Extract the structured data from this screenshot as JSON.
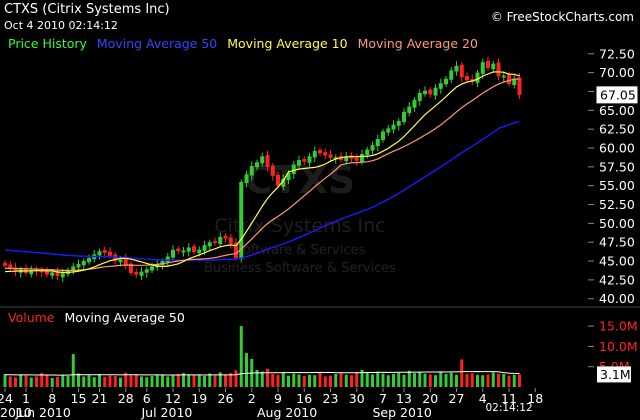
{
  "header": {
    "ticker_title": "CTXS (Citrix Systems Inc)",
    "datetime": "Oct 4 2010 02:14:12",
    "credit": "© FreeStockCharts.com"
  },
  "legend": {
    "price_history": "Price History",
    "ma50": "Moving Average 50",
    "ma10": "Moving Average 10",
    "ma20": "Moving Average 20",
    "volume": "Volume",
    "volume_ma50": "Moving Average 50"
  },
  "watermark": {
    "symbol": "CTXS",
    "company": "Citrix Systems Inc",
    "sector": "Software & Services",
    "industry": "Business Software & Services"
  },
  "colors": {
    "background": "#000000",
    "up": "#33cc33",
    "down": "#ff2222",
    "ma50": "#1a1aff",
    "ma10": "#ffff44",
    "ma20": "#ff9977",
    "volume_label": "#ff2222",
    "price_history_label": "#33ff33"
  },
  "chart_data": {
    "type": "candlestick",
    "price_axis": {
      "ticks": [
        "40.00",
        "42.50",
        "45.00",
        "47.50",
        "50.00",
        "52.50",
        "55.00",
        "57.50",
        "60.00",
        "62.50",
        "65.00",
        "67.50",
        "70.00",
        "72.50"
      ],
      "ylim": [
        39.3,
        73.8
      ]
    },
    "last_price": "67.05",
    "volume_axis": {
      "ticks": [
        "5.0M",
        "10.0M",
        "15.0M"
      ],
      "ylim": [
        0,
        16.5
      ],
      "unit": "M"
    },
    "last_volume": "3.1M",
    "x_ticks": [
      {
        "label": "24",
        "i": 0
      },
      {
        "label": "1",
        "i": 4
      },
      {
        "label": "8",
        "i": 9
      },
      {
        "label": "15",
        "i": 14
      },
      {
        "label": "21",
        "i": 18
      },
      {
        "label": "28",
        "i": 23
      },
      {
        "label": "6",
        "i": 27
      },
      {
        "label": "12",
        "i": 32
      },
      {
        "label": "19",
        "i": 37
      },
      {
        "label": "26",
        "i": 42
      },
      {
        "label": "2",
        "i": 47
      },
      {
        "label": "9",
        "i": 52
      },
      {
        "label": "16",
        "i": 57
      },
      {
        "label": "23",
        "i": 62
      },
      {
        "label": "30",
        "i": 67
      },
      {
        "label": "7",
        "i": 72
      },
      {
        "label": "13",
        "i": 76
      },
      {
        "label": "20",
        "i": 81
      },
      {
        "label": "27",
        "i": 86
      },
      {
        "label": "4",
        "i": 91
      },
      {
        "label": "11",
        "i": 96
      },
      {
        "label": "18",
        "i": 101
      }
    ],
    "month_labels": [
      {
        "label": "2010",
        "i": -1
      },
      {
        "label": "Jun 2010",
        "i": 2
      },
      {
        "label": "Jul 2010",
        "i": 26
      },
      {
        "label": "Aug 2010",
        "i": 48
      },
      {
        "label": "Sep 2010",
        "i": 70
      }
    ],
    "time_label": "02:14:12",
    "closes": [
      44.4,
      44.0,
      43.6,
      43.9,
      43.4,
      43.8,
      43.6,
      43.5,
      43.2,
      43.5,
      43.0,
      43.4,
      43.8,
      44.3,
      44.6,
      45.0,
      45.4,
      45.9,
      46.3,
      46.1,
      45.7,
      45.0,
      45.2,
      44.5,
      43.4,
      43.2,
      43.6,
      43.9,
      44.3,
      44.6,
      45.0,
      45.6,
      46.5,
      46.3,
      46.4,
      46.8,
      46.2,
      46.5,
      47.1,
      47.5,
      47.4,
      48.2,
      48.0,
      47.3,
      45.4,
      55.5,
      56.5,
      57.6,
      58.1,
      58.9,
      57.5,
      56.3,
      55.0,
      55.9,
      56.7,
      57.8,
      58.4,
      58.2,
      58.9,
      59.6,
      59.3,
      59.0,
      58.7,
      58.8,
      58.4,
      58.9,
      58.6,
      58.3,
      59.2,
      59.8,
      60.4,
      61.2,
      62.2,
      62.6,
      63.1,
      63.6,
      64.8,
      65.5,
      66.4,
      67.3,
      67.6,
      67.1,
      68.0,
      68.6,
      69.2,
      70.3,
      70.9,
      69.4,
      69.0,
      68.8,
      70.0,
      71.4,
      70.6,
      71.2,
      69.5,
      69.6,
      68.5,
      69.2,
      67.05
    ],
    "volumes": [
      3.2,
      2.6,
      2.4,
      3.1,
      2.8,
      2.3,
      2.6,
      3.4,
      2.9,
      2.2,
      2.5,
      3.0,
      2.7,
      8.1,
      3.3,
      2.6,
      2.9,
      2.4,
      3.2,
      2.5,
      2.8,
      2.7,
      2.3,
      3.5,
      2.9,
      3.1,
      2.6,
      2.4,
      2.7,
      2.9,
      3.0,
      2.6,
      2.8,
      3.2,
      3.4,
      3.1,
      2.9,
      3.0,
      2.7,
      3.3,
      2.8,
      3.6,
      3.1,
      3.4,
      4.1,
      15.0,
      8.4,
      6.9,
      4.2,
      3.8,
      4.5,
      3.2,
      3.0,
      3.6,
      2.8,
      3.3,
      3.1,
      2.7,
      3.0,
      2.9,
      3.5,
      2.6,
      2.8,
      3.2,
      3.4,
      3.0,
      2.9,
      3.6,
      4.2,
      3.5,
      3.1,
      3.8,
      3.3,
      2.9,
      3.2,
      3.5,
      3.0,
      4.0,
      3.4,
      3.6,
      3.3,
      3.1,
      2.9,
      3.8,
      3.2,
      3.5,
      3.0,
      6.8,
      3.2,
      3.4,
      3.0,
      2.9,
      3.1,
      3.6,
      3.3,
      3.2,
      2.8,
      3.0,
      3.1
    ]
  }
}
